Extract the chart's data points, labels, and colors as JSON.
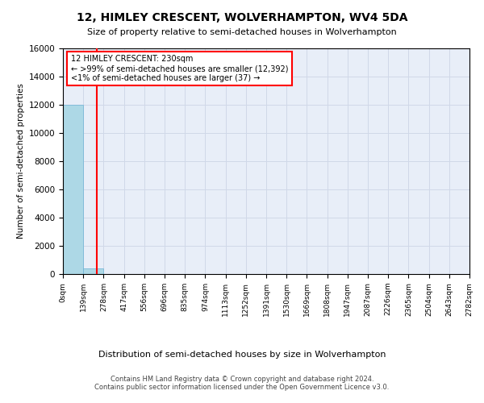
{
  "title": "12, HIMLEY CRESCENT, WOLVERHAMPTON, WV4 5DA",
  "subtitle": "Size of property relative to semi-detached houses in Wolverhampton",
  "xlabel": "Distribution of semi-detached houses by size in Wolverhampton",
  "ylabel": "Number of semi-detached properties",
  "footer_line1": "Contains HM Land Registry data © Crown copyright and database right 2024.",
  "footer_line2": "Contains public sector information licensed under the Open Government Licence v3.0.",
  "bin_labels": [
    "0sqm",
    "139sqm",
    "278sqm",
    "417sqm",
    "556sqm",
    "696sqm",
    "835sqm",
    "974sqm",
    "1113sqm",
    "1252sqm",
    "1391sqm",
    "1530sqm",
    "1669sqm",
    "1808sqm",
    "1947sqm",
    "2087sqm",
    "2226sqm",
    "2365sqm",
    "2504sqm",
    "2643sqm",
    "2782sqm"
  ],
  "bar_values": [
    12000,
    392,
    0,
    0,
    0,
    0,
    0,
    0,
    0,
    0,
    0,
    0,
    0,
    0,
    0,
    0,
    0,
    0,
    0,
    0
  ],
  "bar_color": "#add8e6",
  "bar_edge_color": "#6ab0d4",
  "property_line_x": 1.65,
  "annotation_text_line1": "12 HIMLEY CRESCENT: 230sqm",
  "annotation_text_line2": "← >99% of semi-detached houses are smaller (12,392)",
  "annotation_text_line3": "<1% of semi-detached houses are larger (37) →",
  "annotation_box_color": "red",
  "ylim": [
    0,
    16000
  ],
  "yticks": [
    0,
    2000,
    4000,
    6000,
    8000,
    10000,
    12000,
    14000,
    16000
  ],
  "grid_color": "#d0d8e8",
  "background_color": "#e8eef8"
}
